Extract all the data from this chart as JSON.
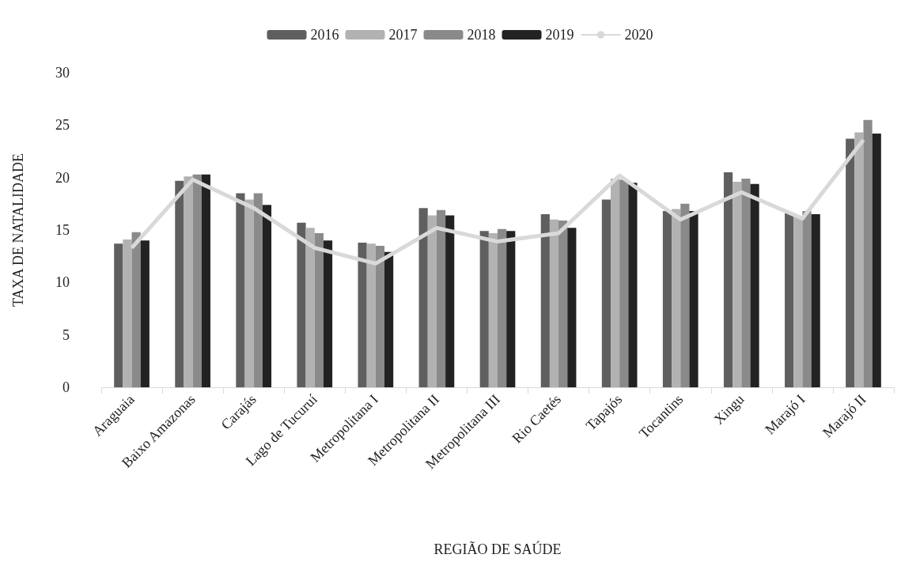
{
  "chart_data": {
    "type": "bar",
    "xlabel": "REGIÃO DE SAÚDE",
    "ylabel": "TAXA DE NATALIDADE",
    "categories": [
      "Araguaia",
      "Baixo Amazonas",
      "Carajás",
      "Lago de Tucuruí",
      "Metropolitana I",
      "Metropolitana II",
      "Metropolitana III",
      "Rio Caetés",
      "Tapajós",
      "Tocantins",
      "Xingu",
      "Marajó I",
      "Marajó II"
    ],
    "series": [
      {
        "name": "2016",
        "color": "#5f5f5f",
        "values": [
          13.7,
          19.7,
          18.5,
          15.7,
          13.8,
          17.1,
          14.9,
          16.5,
          17.9,
          16.8,
          20.5,
          16.6,
          23.7
        ]
      },
      {
        "name": "2017",
        "color": "#b2b2b2",
        "values": [
          14.1,
          20.1,
          17.9,
          15.2,
          13.7,
          16.4,
          14.7,
          16.0,
          19.9,
          17.0,
          19.6,
          16.3,
          24.3
        ]
      },
      {
        "name": "2018",
        "color": "#8a8a8a",
        "values": [
          14.8,
          20.3,
          18.5,
          14.7,
          13.5,
          16.9,
          15.1,
          15.9,
          19.8,
          17.5,
          19.9,
          16.8,
          25.5
        ]
      },
      {
        "name": "2019",
        "color": "#222222",
        "values": [
          14.0,
          20.3,
          17.4,
          14.0,
          12.9,
          16.4,
          14.9,
          15.2,
          19.5,
          16.8,
          19.4,
          16.5,
          24.2
        ]
      },
      {
        "name": "2020",
        "type": "line",
        "color": "#d9d9d9",
        "marker": "none",
        "values": [
          13.3,
          19.8,
          17.1,
          13.3,
          11.8,
          15.2,
          13.9,
          14.7,
          20.2,
          16.0,
          18.6,
          16.1,
          23.6
        ]
      }
    ],
    "ylim": [
      0,
      30
    ],
    "yticks": [
      0,
      5,
      10,
      15,
      20,
      25,
      30
    ],
    "grid": false,
    "legend": "top"
  }
}
